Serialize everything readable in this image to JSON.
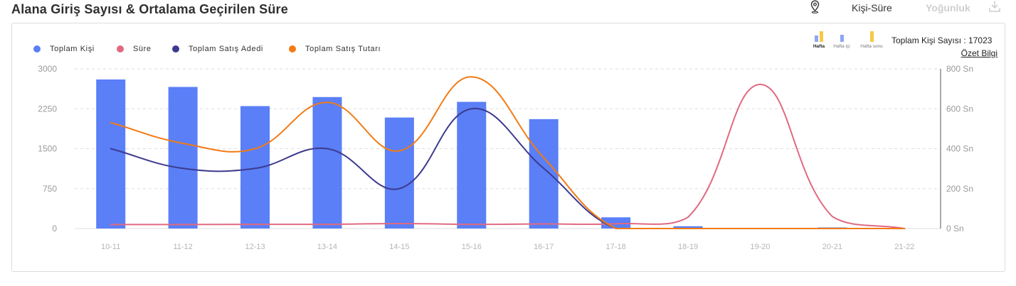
{
  "header": {
    "title": "Alana Giriş Sayısı & Ortalama Geçirilen Süre",
    "location_icon": "map-pin-icon",
    "tabs": [
      {
        "label": "Kişi-Süre",
        "active": true
      },
      {
        "label": "Yoğunluk",
        "active": false
      }
    ],
    "download_icon": "download-icon"
  },
  "period_filter": {
    "items": [
      {
        "label": "Hafta",
        "icon": "bar-chart-icon",
        "selected": true
      },
      {
        "label": "Hafta içi",
        "icon": "bar-chart-icon",
        "selected": false
      },
      {
        "label": "Hafta sonu",
        "icon": "bar-chart-icon",
        "selected": false
      }
    ]
  },
  "summary": {
    "total_label": "Toplam Kişi Sayısı :",
    "total_value": "17023",
    "details_link": "Özet Bilgi"
  },
  "colors": {
    "weekday": "#8ea6f3",
    "weekend": "#f6c945",
    "inactive_tab": "#cfcfcf"
  },
  "chart_data": {
    "type": "bar",
    "categories": [
      "10-11",
      "11-12",
      "12-13",
      "13-14",
      "14-15",
      "15-16",
      "16-17",
      "17-18",
      "18-19",
      "19-20",
      "20-21",
      "21-22"
    ],
    "series": [
      {
        "name": "Toplam Kişi",
        "type": "bar",
        "axis": "left",
        "color": "#5a7ff6",
        "values": [
          2800,
          2660,
          2300,
          2470,
          2085,
          2380,
          2055,
          210,
          43,
          0,
          20,
          0
        ]
      },
      {
        "name": "Süre",
        "type": "line",
        "axis": "right",
        "color": "#e06a81",
        "values": [
          20,
          20,
          21,
          21,
          25,
          21,
          23,
          24,
          57,
          722,
          60,
          0
        ]
      },
      {
        "name": "Toplam Satış Adedi",
        "type": "line",
        "axis": "left",
        "color": "#3d3a8e",
        "values": [
          1500,
          1130,
          1130,
          1500,
          750,
          2250,
          1130,
          0,
          0,
          0,
          0,
          0
        ]
      },
      {
        "name": "Toplam Satış Tutarı",
        "type": "line",
        "axis": "left",
        "color": "#f27b15",
        "values": [
          1990,
          1600,
          1500,
          2370,
          1460,
          2850,
          1330,
          0,
          0,
          0,
          0,
          0
        ]
      }
    ],
    "y_left": {
      "range": [
        0,
        3000
      ],
      "tick_labels": [
        "0",
        "750",
        "1500",
        "2250",
        "3000"
      ]
    },
    "y_right": {
      "range": [
        0,
        800
      ],
      "tick_labels": [
        "0 Sn",
        "200 Sn",
        "400 Sn",
        "600 Sn",
        "800 Sn"
      ]
    },
    "grid": true,
    "legend_position": "top-left"
  }
}
